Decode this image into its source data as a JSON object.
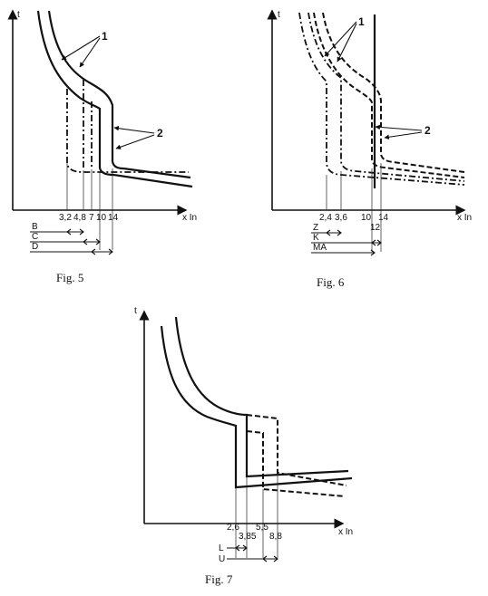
{
  "fig5": {
    "caption": "Fig. 5",
    "t_label": "t",
    "x_label": "x In",
    "ticks": [
      "3,2",
      "4,8",
      "7",
      "10",
      "14"
    ],
    "callout_1": "1",
    "callout_2": "2",
    "ranges": [
      "B",
      "C",
      "D"
    ]
  },
  "fig6": {
    "caption": "Fig. 6",
    "t_label": "t",
    "x_label": "x In",
    "ticks": [
      "2,4",
      "3,6",
      "10",
      "14",
      "12"
    ],
    "callout_1": "1",
    "callout_2": "2",
    "ranges": [
      "Z",
      "K",
      "MA"
    ]
  },
  "fig7": {
    "caption": "Fig. 7",
    "t_label": "t",
    "x_label": "x In",
    "ticks": [
      "2,6",
      "3,85",
      "5,5",
      "8,8"
    ],
    "ranges": [
      "L",
      "U"
    ]
  },
  "marker": "*"
}
